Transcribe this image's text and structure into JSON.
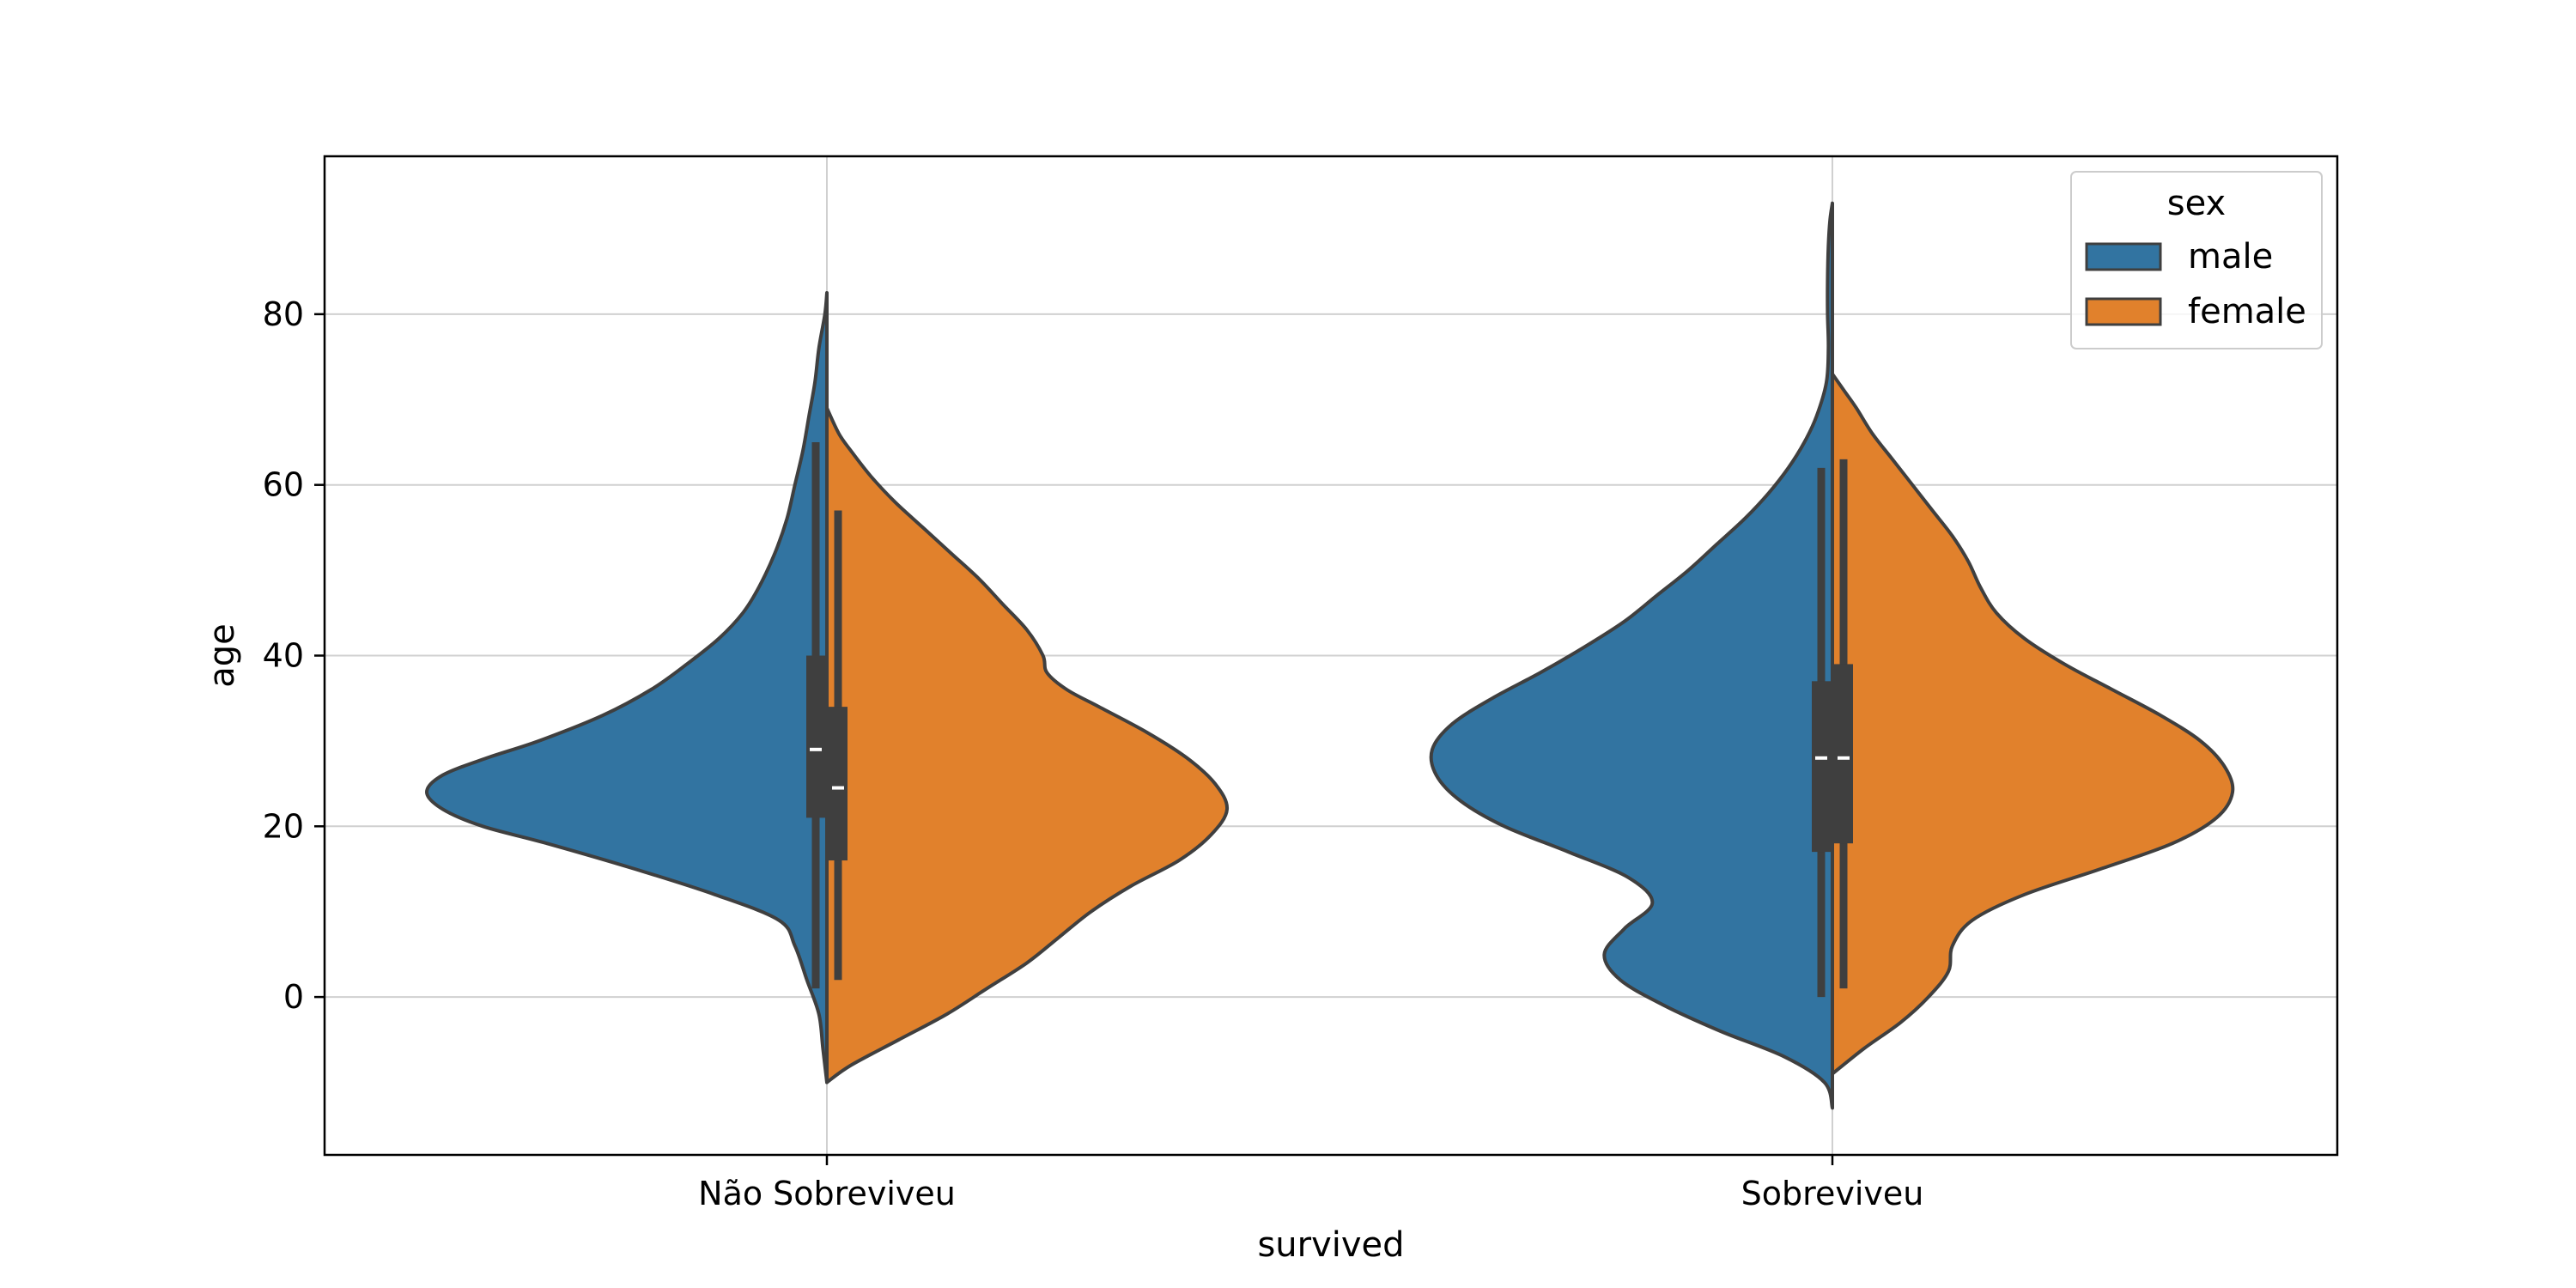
{
  "chart_data": {
    "type": "violin",
    "split": true,
    "xlabel": "survived",
    "ylabel": "age",
    "categories": [
      "Não Sobreviveu",
      "Sobreviveu"
    ],
    "ylim": [
      -18.5,
      98.5
    ],
    "yticks": [
      0,
      20,
      40,
      60,
      80
    ],
    "grid": true,
    "legend": {
      "title": "sex",
      "position": "top-right",
      "entries": [
        "male",
        "female"
      ]
    },
    "series": [
      {
        "name": "male",
        "color": "#3274a1",
        "side": "left",
        "groups": [
          {
            "category": "Não Sobreviveu",
            "ymin": -10,
            "ymax": 82.5,
            "profile": [
              [
                -10,
                0
              ],
              [
                -6,
                0.01
              ],
              [
                -2,
                0.02
              ],
              [
                2,
                0.05
              ],
              [
                6,
                0.08
              ],
              [
                9,
                0.12
              ],
              [
                12,
                0.28
              ],
              [
                15,
                0.48
              ],
              [
                18,
                0.7
              ],
              [
                20,
                0.86
              ],
              [
                22,
                0.96
              ],
              [
                24,
                1.0
              ],
              [
                26,
                0.96
              ],
              [
                28,
                0.85
              ],
              [
                30,
                0.72
              ],
              [
                33,
                0.56
              ],
              [
                36,
                0.44
              ],
              [
                39,
                0.35
              ],
              [
                42,
                0.27
              ],
              [
                45,
                0.21
              ],
              [
                48,
                0.17
              ],
              [
                52,
                0.13
              ],
              [
                56,
                0.1
              ],
              [
                60,
                0.08
              ],
              [
                64,
                0.06
              ],
              [
                68,
                0.045
              ],
              [
                72,
                0.03
              ],
              [
                76,
                0.02
              ],
              [
                80,
                0.005
              ],
              [
                82.5,
                0
              ]
            ],
            "box": {
              "q1": 21,
              "median": 29,
              "q3": 40,
              "whisker_low": 1,
              "whisker_high": 65
            }
          },
          {
            "category": "Sobreviveu",
            "ymin": -13,
            "ymax": 93,
            "profile": [
              [
                -13,
                0
              ],
              [
                -10,
                0.02
              ],
              [
                -7,
                0.12
              ],
              [
                -4,
                0.28
              ],
              [
                -1,
                0.42
              ],
              [
                2,
                0.53
              ],
              [
                5,
                0.57
              ],
              [
                8,
                0.52
              ],
              [
                11,
                0.45
              ],
              [
                14,
                0.51
              ],
              [
                17,
                0.66
              ],
              [
                20,
                0.82
              ],
              [
                23,
                0.93
              ],
              [
                26,
                0.99
              ],
              [
                29,
                1.0
              ],
              [
                32,
                0.95
              ],
              [
                35,
                0.85
              ],
              [
                38,
                0.73
              ],
              [
                41,
                0.62
              ],
              [
                44,
                0.52
              ],
              [
                47,
                0.44
              ],
              [
                50,
                0.36
              ],
              [
                53,
                0.29
              ],
              [
                56,
                0.22
              ],
              [
                59,
                0.16
              ],
              [
                62,
                0.11
              ],
              [
                65,
                0.07
              ],
              [
                68,
                0.04
              ],
              [
                72,
                0.015
              ],
              [
                76,
                0.01
              ],
              [
                80,
                0.012
              ],
              [
                84,
                0.012
              ],
              [
                88,
                0.01
              ],
              [
                91,
                0.006
              ],
              [
                93,
                0
              ]
            ],
            "box": {
              "q1": 17,
              "median": 28,
              "q3": 37,
              "whisker_low": 0,
              "whisker_high": 62
            }
          }
        ]
      },
      {
        "name": "female",
        "color": "#e1812c",
        "side": "right",
        "groups": [
          {
            "category": "Não Sobreviveu",
            "ymin": -10,
            "ymax": 69,
            "profile": [
              [
                -10,
                0
              ],
              [
                -8,
                0.06
              ],
              [
                -5,
                0.18
              ],
              [
                -2,
                0.3
              ],
              [
                1,
                0.4
              ],
              [
                4,
                0.5
              ],
              [
                7,
                0.58
              ],
              [
                10,
                0.66
              ],
              [
                13,
                0.76
              ],
              [
                16,
                0.88
              ],
              [
                19,
                0.96
              ],
              [
                22,
                1.0
              ],
              [
                25,
                0.97
              ],
              [
                28,
                0.9
              ],
              [
                31,
                0.8
              ],
              [
                34,
                0.68
              ],
              [
                36,
                0.6
              ],
              [
                38,
                0.55
              ],
              [
                40,
                0.54
              ],
              [
                43,
                0.5
              ],
              [
                46,
                0.44
              ],
              [
                49,
                0.38
              ],
              [
                52,
                0.31
              ],
              [
                55,
                0.24
              ],
              [
                58,
                0.17
              ],
              [
                61,
                0.11
              ],
              [
                64,
                0.06
              ],
              [
                66,
                0.03
              ],
              [
                69,
                0
              ]
            ],
            "box": {
              "q1": 16,
              "median": 24.5,
              "q3": 34,
              "whisker_low": 2,
              "whisker_high": 57
            }
          },
          {
            "category": "Sobreviveu",
            "ymin": -9,
            "ymax": 73,
            "profile": [
              [
                -9,
                0
              ],
              [
                -6,
                0.08
              ],
              [
                -3,
                0.17
              ],
              [
                0,
                0.24
              ],
              [
                3,
                0.29
              ],
              [
                6,
                0.3
              ],
              [
                9,
                0.35
              ],
              [
                12,
                0.48
              ],
              [
                15,
                0.67
              ],
              [
                18,
                0.85
              ],
              [
                21,
                0.96
              ],
              [
                24,
                1.0
              ],
              [
                27,
                0.98
              ],
              [
                30,
                0.92
              ],
              [
                33,
                0.82
              ],
              [
                36,
                0.7
              ],
              [
                39,
                0.58
              ],
              [
                42,
                0.48
              ],
              [
                45,
                0.41
              ],
              [
                48,
                0.37
              ],
              [
                51,
                0.34
              ],
              [
                54,
                0.3
              ],
              [
                57,
                0.25
              ],
              [
                60,
                0.2
              ],
              [
                63,
                0.15
              ],
              [
                66,
                0.1
              ],
              [
                69,
                0.06
              ],
              [
                71,
                0.03
              ],
              [
                73,
                0
              ]
            ],
            "box": {
              "q1": 18,
              "median": 28,
              "q3": 39,
              "whisker_low": 1,
              "whisker_high": 63
            }
          }
        ]
      }
    ]
  }
}
